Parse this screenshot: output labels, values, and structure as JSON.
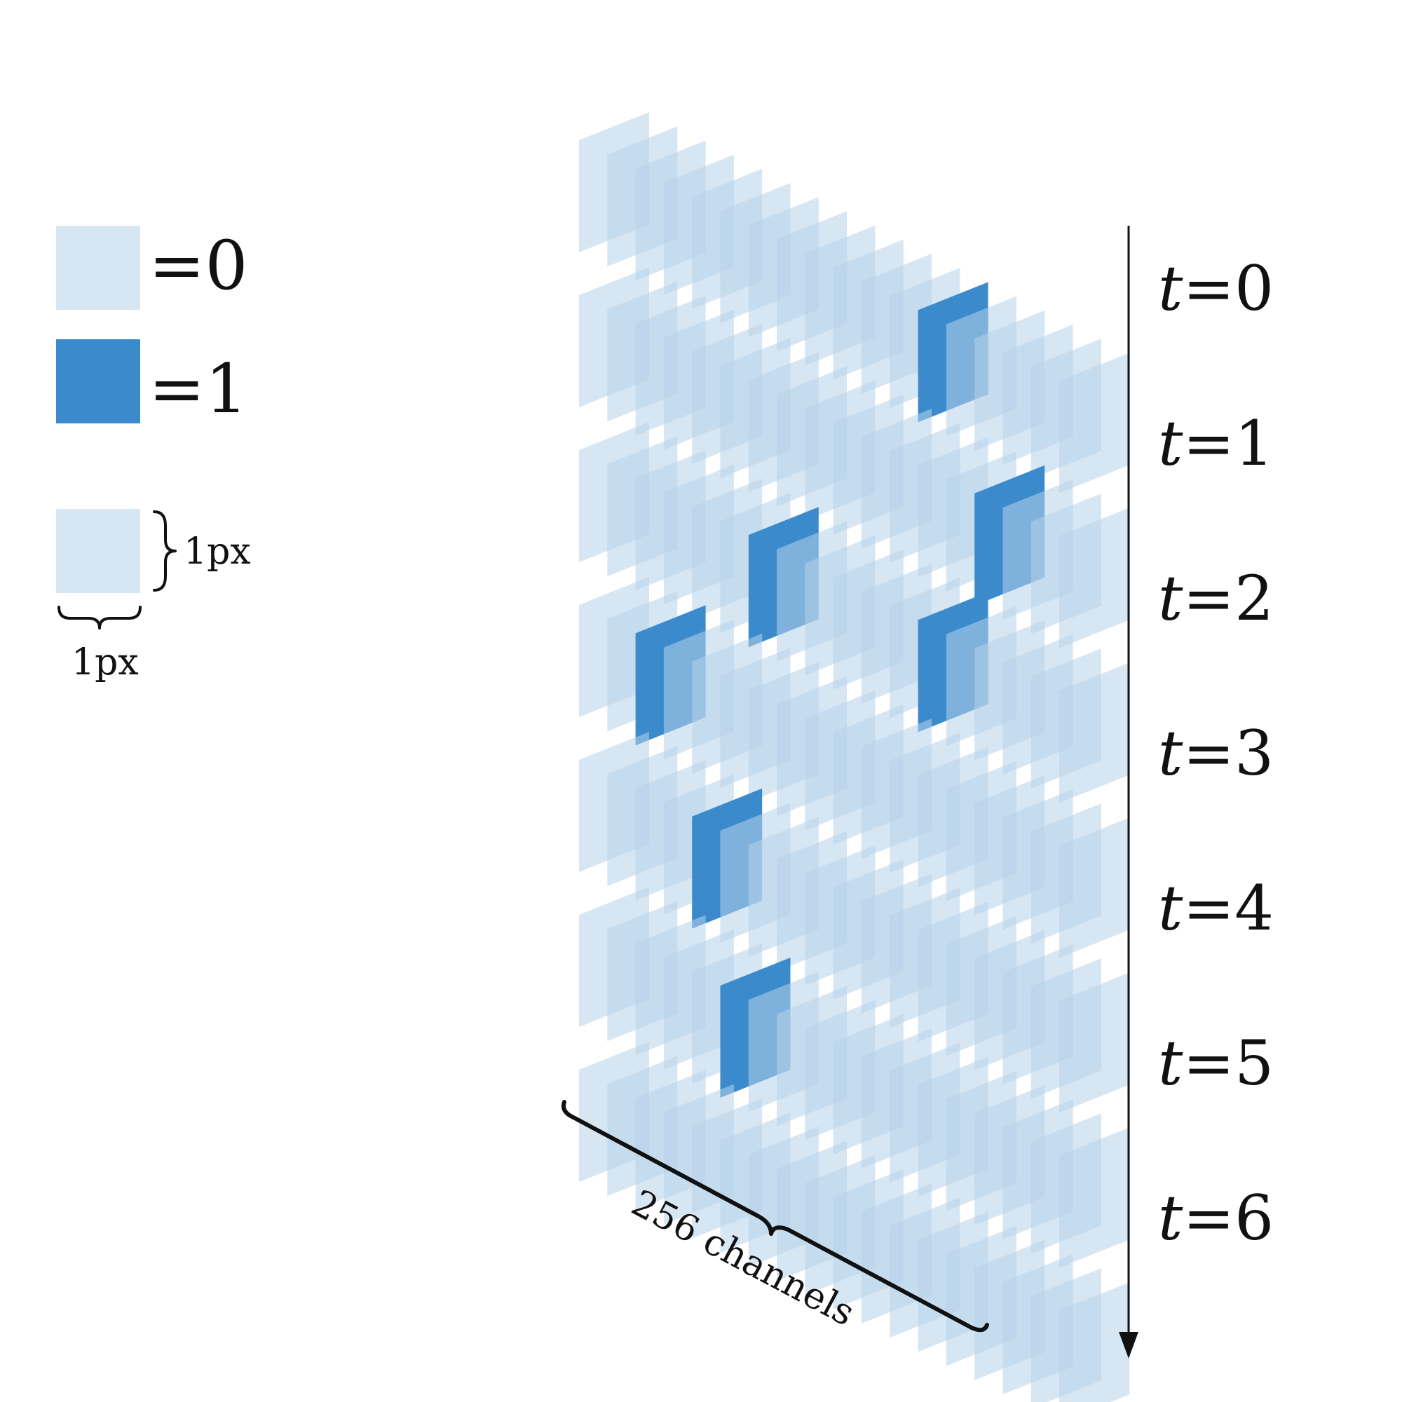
{
  "legend": {
    "off_label": "=0",
    "on_label": "=1",
    "size_width_label": "1px",
    "size_height_label": "1px"
  },
  "colors": {
    "off": "#b6d1ea",
    "on": "#3b8bcc",
    "text": "#111111",
    "background": "#ffffff"
  },
  "axis_label": "256 channels",
  "time_var": "t",
  "time_steps": [
    {
      "label": "0",
      "active": [
        12
      ]
    },
    {
      "label": "1",
      "active": [
        14
      ]
    },
    {
      "label": "2",
      "active": [
        6,
        12
      ]
    },
    {
      "label": "3",
      "active": [
        2
      ]
    },
    {
      "label": "4",
      "active": [
        4
      ]
    },
    {
      "label": "5",
      "active": [
        5
      ]
    },
    {
      "label": "6",
      "active": []
    }
  ],
  "channels_drawn": 18
}
